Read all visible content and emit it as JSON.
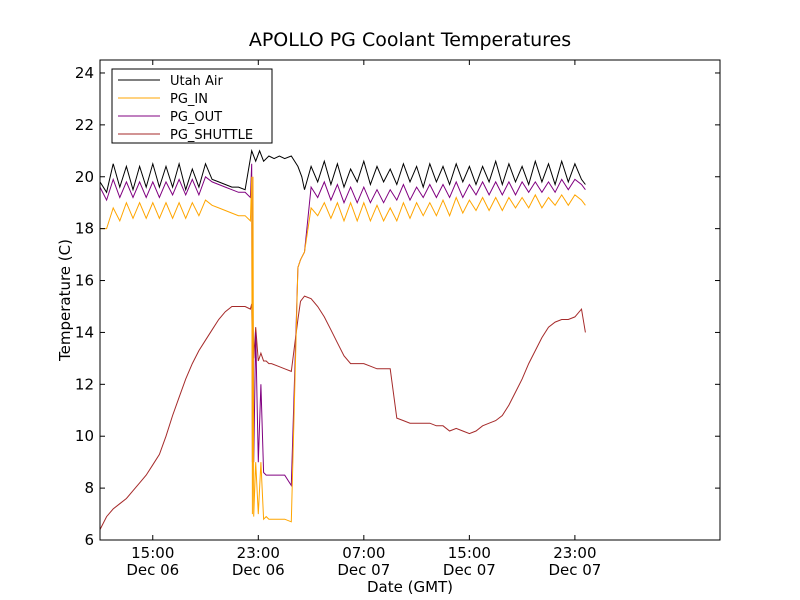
{
  "chart_data": {
    "type": "line",
    "title": "APOLLO PG Coolant Temperatures",
    "xlabel": "Date (GMT)",
    "ylabel": "Temperature (C)",
    "xlim_hours": [
      0,
      47
    ],
    "ylim": [
      6,
      24.5
    ],
    "yticks": [
      6,
      8,
      10,
      12,
      14,
      16,
      18,
      20,
      22,
      24
    ],
    "xticks": [
      {
        "hour": 4,
        "label_time": "15:00",
        "label_date": "Dec 06"
      },
      {
        "hour": 12,
        "label_time": "23:00",
        "label_date": "Dec 06"
      },
      {
        "hour": 20,
        "label_time": "07:00",
        "label_date": "Dec 07"
      },
      {
        "hour": 28,
        "label_time": "15:00",
        "label_date": "Dec 07"
      },
      {
        "hour": 36,
        "label_time": "23:00",
        "label_date": "Dec 07"
      }
    ],
    "legend_location": "upper-left",
    "series": [
      {
        "name": "Utah Air",
        "color": "#000000",
        "x": [
          0,
          0.5,
          1,
          1.5,
          2,
          2.5,
          3,
          3.5,
          4,
          4.5,
          5,
          5.5,
          6,
          6.5,
          7,
          7.5,
          8,
          8.5,
          9,
          9.5,
          10,
          10.5,
          11,
          11.5,
          11.8,
          12.1,
          12.4,
          12.8,
          13.2,
          13.6,
          14,
          14.5,
          15,
          15.3,
          15.5,
          16,
          16.5,
          17,
          17.5,
          18,
          18.5,
          19,
          19.5,
          20,
          20.5,
          21,
          21.5,
          22,
          22.5,
          23,
          23.5,
          24,
          24.5,
          25,
          25.5,
          26,
          26.5,
          27,
          27.5,
          28,
          28.5,
          29,
          29.5,
          30,
          30.5,
          31,
          31.5,
          32,
          32.5,
          33,
          33.5,
          34,
          34.5,
          35,
          35.5,
          36,
          36.5,
          36.8
        ],
        "values": [
          19.8,
          19.4,
          20.5,
          19.6,
          20.4,
          19.5,
          20.4,
          19.6,
          20.5,
          19.6,
          20.4,
          19.6,
          20.5,
          19.5,
          20.3,
          19.6,
          20.5,
          19.9,
          19.8,
          19.7,
          19.6,
          19.6,
          19.5,
          21.0,
          20.6,
          21.0,
          20.6,
          20.8,
          20.7,
          20.8,
          20.7,
          20.8,
          20.4,
          20.0,
          19.5,
          20.4,
          19.8,
          20.6,
          19.7,
          20.5,
          19.6,
          20.3,
          19.8,
          20.6,
          19.7,
          20.4,
          19.8,
          20.3,
          19.7,
          20.5,
          19.8,
          20.4,
          19.6,
          20.5,
          19.8,
          20.4,
          19.7,
          20.5,
          19.8,
          20.4,
          19.7,
          20.4,
          19.8,
          20.6,
          19.7,
          20.5,
          19.8,
          20.4,
          19.7,
          20.6,
          19.8,
          20.5,
          19.7,
          20.6,
          19.8,
          20.5,
          19.9,
          19.7
        ]
      },
      {
        "name": "PG_IN",
        "color": "#ffa500",
        "x": [
          0,
          0.5,
          1,
          1.5,
          2,
          2.5,
          3,
          3.5,
          4,
          4.5,
          5,
          5.5,
          6,
          6.5,
          7,
          7.5,
          8,
          8.5,
          9,
          9.5,
          10,
          10.5,
          11,
          11.4,
          11.5,
          11.55,
          11.6,
          11.65,
          11.8,
          12.0,
          12.2,
          12.4,
          12.6,
          12.8,
          13.0,
          13.5,
          14,
          14.5,
          15,
          15.2,
          15.3,
          15.5,
          16,
          16.5,
          17,
          17.5,
          18,
          18.5,
          19,
          19.5,
          20,
          20.5,
          21,
          21.5,
          22,
          22.5,
          23,
          23.5,
          24,
          24.5,
          25,
          25.5,
          26,
          26.5,
          27,
          27.5,
          28,
          28.5,
          29,
          29.5,
          30,
          30.5,
          31,
          31.5,
          32,
          32.5,
          33,
          33.5,
          34,
          34.5,
          35,
          35.5,
          36,
          36.5,
          36.8
        ],
        "values": [
          18.0,
          18.0,
          18.8,
          18.3,
          19.0,
          18.4,
          19.0,
          18.4,
          19.0,
          18.4,
          19.0,
          18.4,
          19.0,
          18.4,
          19.0,
          18.5,
          19.1,
          18.9,
          18.8,
          18.7,
          18.6,
          18.5,
          18.5,
          18.3,
          20.0,
          7.0,
          20.0,
          6.9,
          9.0,
          7.0,
          9.0,
          6.8,
          6.9,
          6.8,
          6.8,
          6.8,
          6.8,
          6.7,
          16.5,
          16.8,
          16.9,
          17.1,
          18.8,
          18.5,
          19.0,
          18.4,
          19.0,
          18.3,
          19.0,
          18.3,
          19.0,
          18.3,
          18.9,
          18.3,
          18.8,
          18.3,
          19.0,
          18.4,
          19.0,
          18.5,
          19.0,
          18.5,
          19.1,
          18.5,
          19.2,
          18.6,
          19.1,
          18.7,
          19.2,
          18.7,
          19.2,
          18.7,
          19.2,
          18.8,
          19.2,
          18.8,
          19.3,
          18.8,
          19.2,
          18.9,
          19.3,
          18.9,
          19.3,
          19.1,
          18.9
        ]
      },
      {
        "name": "PG_OUT",
        "color": "#800080",
        "x": [
          0,
          0.5,
          1,
          1.5,
          2,
          2.5,
          3,
          3.5,
          4,
          4.5,
          5,
          5.5,
          6,
          6.5,
          7,
          7.5,
          8,
          8.5,
          9,
          9.5,
          10,
          10.5,
          11,
          11.4,
          11.5,
          11.55,
          11.6,
          11.65,
          11.8,
          12.0,
          12.2,
          12.4,
          12.6,
          12.8,
          13.0,
          13.5,
          14,
          14.5,
          15,
          15.2,
          15.3,
          15.5,
          16,
          16.5,
          17,
          17.5,
          18,
          18.5,
          19,
          19.5,
          20,
          20.5,
          21,
          21.5,
          22,
          22.5,
          23,
          23.5,
          24,
          24.5,
          25,
          25.5,
          26,
          26.5,
          27,
          27.5,
          28,
          28.5,
          29,
          29.5,
          30,
          30.5,
          31,
          31.5,
          32,
          32.5,
          33,
          33.5,
          34,
          34.5,
          35,
          35.5,
          36,
          36.5,
          36.8
        ],
        "values": [
          19.6,
          19.1,
          19.9,
          19.2,
          19.8,
          19.2,
          19.8,
          19.2,
          19.8,
          19.2,
          19.8,
          19.3,
          19.9,
          19.3,
          19.9,
          19.3,
          20.0,
          19.8,
          19.7,
          19.6,
          19.5,
          19.4,
          19.4,
          19.2,
          20.5,
          9.0,
          15.0,
          9.0,
          14.0,
          9.0,
          12.0,
          8.6,
          8.5,
          8.5,
          8.5,
          8.5,
          8.5,
          8.1,
          16.5,
          16.8,
          16.9,
          17.1,
          19.6,
          19.2,
          19.8,
          19.1,
          19.7,
          19.0,
          19.6,
          19.0,
          19.6,
          19.0,
          19.5,
          19.0,
          19.5,
          19.1,
          19.7,
          19.1,
          19.6,
          19.2,
          19.7,
          19.2,
          19.7,
          19.2,
          19.8,
          19.2,
          19.7,
          19.3,
          19.8,
          19.3,
          19.8,
          19.3,
          19.8,
          19.3,
          19.8,
          19.4,
          19.8,
          19.4,
          19.8,
          19.4,
          19.9,
          19.5,
          19.9,
          19.7,
          19.5
        ]
      },
      {
        "name": "PG_SHUTTLE",
        "color": "#a52a2a",
        "x": [
          0,
          0.5,
          1,
          1.5,
          2,
          2.5,
          3,
          3.5,
          4,
          4.5,
          5,
          5.5,
          6,
          6.5,
          7,
          7.5,
          8,
          8.5,
          9,
          9.5,
          10,
          10.5,
          11,
          11.4,
          11.5,
          11.55,
          11.6,
          11.65,
          11.8,
          12.0,
          12.2,
          12.4,
          12.6,
          12.8,
          13.0,
          13.5,
          14,
          14.5,
          15,
          15.2,
          15.5,
          16,
          16.5,
          17,
          17.5,
          18,
          18.5,
          19,
          19.5,
          19.6,
          20,
          20.5,
          21,
          21.5,
          22,
          22.5,
          23,
          23.5,
          24,
          24.5,
          25,
          25.5,
          26,
          26.5,
          27,
          27.5,
          28,
          28.5,
          29,
          29.5,
          30,
          30.5,
          31,
          31.5,
          32,
          32.5,
          33,
          33.5,
          34,
          34.5,
          35,
          35.5,
          36,
          36.5,
          36.8
        ],
        "values": [
          6.4,
          6.9,
          7.2,
          7.4,
          7.6,
          7.9,
          8.2,
          8.5,
          8.9,
          9.3,
          10.0,
          10.8,
          11.5,
          12.2,
          12.8,
          13.3,
          13.7,
          14.1,
          14.5,
          14.8,
          15.0,
          15.0,
          15.0,
          14.9,
          15.1,
          13.0,
          14.2,
          13.0,
          14.2,
          12.9,
          13.2,
          12.9,
          12.9,
          12.8,
          12.8,
          12.7,
          12.6,
          12.5,
          14.5,
          15.2,
          15.4,
          15.3,
          15.0,
          14.6,
          14.1,
          13.6,
          13.1,
          12.8,
          12.8,
          12.8,
          12.8,
          12.7,
          12.6,
          12.6,
          12.6,
          10.7,
          10.6,
          10.5,
          10.5,
          10.5,
          10.5,
          10.4,
          10.4,
          10.2,
          10.3,
          10.2,
          10.1,
          10.2,
          10.4,
          10.5,
          10.6,
          10.8,
          11.2,
          11.7,
          12.2,
          12.8,
          13.3,
          13.8,
          14.2,
          14.4,
          14.5,
          14.5,
          14.6,
          14.9,
          14.0
        ]
      }
    ]
  }
}
